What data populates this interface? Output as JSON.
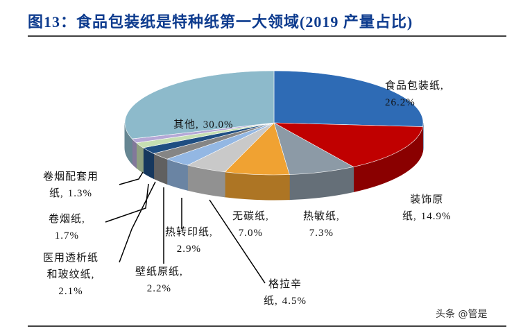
{
  "chart_data": {
    "type": "pie",
    "title": "图13：食品包装纸是特种纸第一大领域(2019 产量占比)",
    "categories": [
      "食品包装纸,",
      "装饰原\n纸,",
      "热敏纸,",
      "无碳纸,",
      "格拉辛\n纸,",
      "热转印纸,",
      "壁纸原纸,",
      "医用透析纸\n和玻纹纸,",
      "卷烟纸,",
      "卷烟配套用\n纸,",
      "其他,"
    ],
    "values": [
      26.2,
      14.9,
      7.3,
      7.0,
      4.5,
      2.9,
      2.2,
      2.1,
      1.7,
      1.3,
      30.0
    ],
    "value_labels": [
      "26.2%",
      "14.9%",
      "7.3%",
      "7.0%",
      "4.5%",
      "2.9%",
      "2.2%",
      "2.1%",
      "1.7%",
      "1.3%",
      "30.0%"
    ],
    "colors": [
      "#2e6bb5",
      "#c00000",
      "#8c9aa6",
      "#f0a232",
      "#c9c9c9",
      "#93b7e3",
      "#858585",
      "#1f4e82",
      "#c6dfb2",
      "#b5a8d6",
      "#8dbacb"
    ],
    "watermark": "头条 @管是"
  }
}
